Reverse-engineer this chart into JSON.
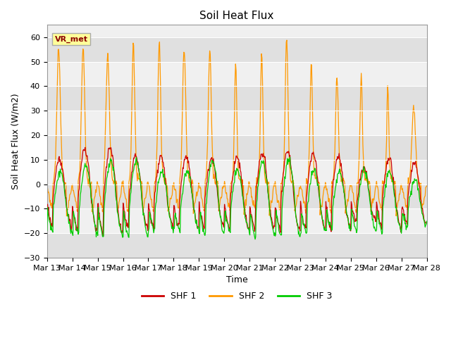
{
  "title": "Soil Heat Flux",
  "xlabel": "Time",
  "ylabel": "Soil Heat Flux (W/m2)",
  "ylim": [
    -30,
    65
  ],
  "yticks": [
    -30,
    -20,
    -10,
    0,
    10,
    20,
    30,
    40,
    50,
    60
  ],
  "shf1_color": "#cc0000",
  "shf2_color": "#ff9900",
  "shf3_color": "#00cc00",
  "legend_labels": [
    "SHF 1",
    "SHF 2",
    "SHF 3"
  ],
  "annotation_text": "VR_met",
  "annotation_color": "#8B0000",
  "annotation_bg": "#ffff99",
  "n_days": 15,
  "start_day": 13,
  "bg_band_color": "#e0e0e0",
  "band_ranges": [
    [
      -30,
      -20
    ],
    [
      -10,
      0
    ],
    [
      10,
      20
    ],
    [
      30,
      40
    ],
    [
      50,
      60
    ]
  ]
}
